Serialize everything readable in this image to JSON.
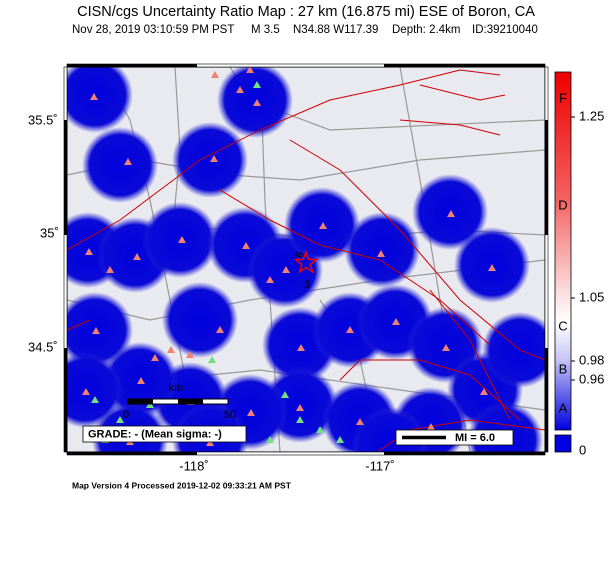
{
  "header": {
    "title": "CISN/cgs Uncertainty Ratio Map : 27 km (16.875 mi) ESE of Boron, CA",
    "subtitle": [
      "Nov 28, 2019 03:10:59 PM PST",
      "M 3.5",
      "N34.88 W117.39",
      "Depth: 2.4km",
      "ID:39210040"
    ]
  },
  "map": {
    "lat_labels": [
      "35.5˚",
      "35˚",
      "34.5˚"
    ],
    "lon_labels": [
      "-118˚",
      "-117˚"
    ],
    "station_labels": [
      "6",
      "3"
    ],
    "scale_bar": {
      "unit": "km",
      "start": "0",
      "end": "50"
    },
    "grade_box": "GRADE: - (Mean sigma: -)",
    "intensity_box": "MI = 6.0"
  },
  "colorbar": {
    "grades": [
      "F",
      "D",
      "C",
      "B",
      "A"
    ],
    "ticks": [
      "1.25",
      "1.05",
      "0.98",
      "0.96",
      "0"
    ]
  },
  "footer": "Map Version 4 Processed 2019-12-02 09:33:21 AM PST"
}
